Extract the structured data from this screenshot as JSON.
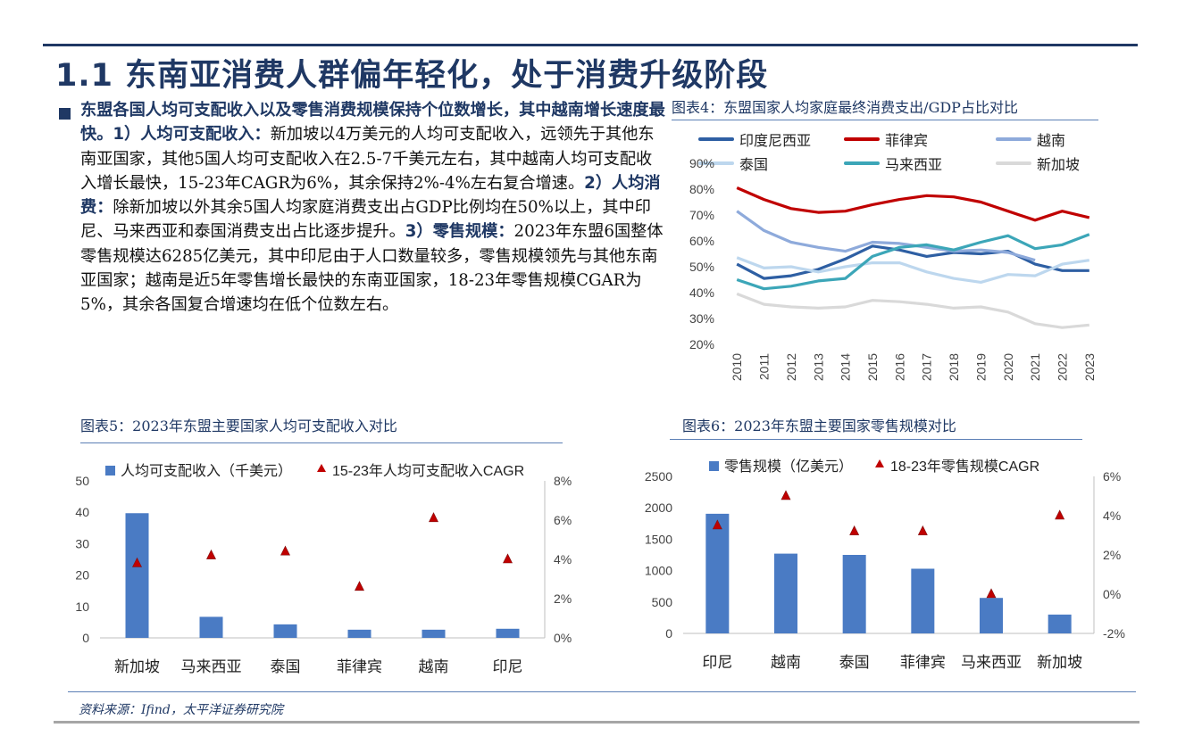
{
  "page": {
    "title": "1.1 东南亚消费人群偏年轻化，处于消费升级阶段",
    "source": "资料来源：Ifind，太平洋证券研究院"
  },
  "body": {
    "p1_bold": "东盟各国人均可支配收入以及零售消费规模保持个位数增长，其中越南增长速度最快。1）人均可支配收入：",
    "p1_text": "新加坡以4万美元的人均可支配收入，远领先于其他东南亚国家，其他5国人均可支配收入在2.5-7千美元左右，其中越南人均可支配收入增长最快，15-23年CAGR为6%，其余保持2%-4%左右复合增速。",
    "p2_bold": "2）人均消费：",
    "p2_text": "除新加坡以外其余5国人均家庭消费支出占GDP比例均在50%以上，其中印尼、马来西亚和泰国消费支出占比逐步提升。",
    "p3_bold": "3）零售规模：",
    "p3_text": "2023年东盟6国整体零售规模达6285亿美元，其中印尼由于人口数量较多，零售规模领先与其他东南亚国家；越南是近5年零售增长最快的东南亚国家，18-23年零售规模CGAR为5%，其余各国复合增速均在低个位数左右。"
  },
  "captions": {
    "fig4": "图表4：东盟国家人均家庭最终消费支出/GDP占比对比",
    "fig5": "图表5：2023年东盟主要国家人均可支配收入对比",
    "fig6": "图表6：2023年东盟主要国家零售规模对比"
  },
  "chart_data": [
    {
      "id": "fig4",
      "type": "line",
      "x": [
        "2010",
        "2011",
        "2012",
        "2013",
        "2014",
        "2015",
        "2016",
        "2017",
        "2018",
        "2019",
        "2020",
        "2021",
        "2022",
        "2023"
      ],
      "ylim": [
        0.2,
        0.9
      ],
      "yticks": [
        "20%",
        "30%",
        "40%",
        "50%",
        "60%",
        "70%",
        "80%",
        "90%"
      ],
      "series": [
        {
          "name": "印度尼西亚",
          "color": "#2e5fa3",
          "values": [
            0.51,
            0.455,
            0.465,
            0.49,
            0.53,
            0.58,
            0.565,
            0.54,
            0.555,
            0.55,
            0.56,
            0.51,
            0.485,
            0.485
          ]
        },
        {
          "name": "菲律宾",
          "color": "#c00000",
          "values": [
            0.805,
            0.76,
            0.725,
            0.71,
            0.715,
            0.74,
            0.76,
            0.775,
            0.77,
            0.75,
            0.715,
            0.68,
            0.715,
            0.69
          ]
        },
        {
          "name": "越南",
          "color": "#8eaadb",
          "values": [
            0.715,
            0.64,
            0.595,
            0.575,
            0.56,
            0.595,
            0.59,
            0.575,
            0.56,
            0.565,
            0.555,
            0.525,
            null,
            null
          ]
        },
        {
          "name": "泰国",
          "color": "#bdd7ee",
          "values": [
            0.535,
            0.495,
            0.5,
            0.48,
            0.5,
            0.515,
            0.515,
            0.48,
            0.455,
            0.44,
            0.47,
            0.465,
            0.51,
            0.525
          ]
        },
        {
          "name": "马来西亚",
          "color": "#3ca6b8",
          "values": [
            0.45,
            0.415,
            0.425,
            0.445,
            0.455,
            0.54,
            0.575,
            0.585,
            0.565,
            0.595,
            0.62,
            0.57,
            0.585,
            0.625
          ]
        },
        {
          "name": "新加坡",
          "color": "#d9d9d9",
          "values": [
            0.395,
            0.355,
            0.345,
            0.34,
            0.345,
            0.37,
            0.365,
            0.355,
            0.34,
            0.345,
            0.325,
            0.28,
            0.265,
            0.275
          ]
        }
      ]
    },
    {
      "id": "fig5",
      "type": "bar",
      "categories": [
        "新加坡",
        "马来西亚",
        "泰国",
        "菲律宾",
        "越南",
        "印尼"
      ],
      "series": [
        {
          "name": "人均可支配收入（千美元）",
          "color": "#4a7bc4",
          "values": [
            39.7,
            6.7,
            4.3,
            2.6,
            2.6,
            2.9
          ],
          "axis": "left"
        },
        {
          "name": "15-23年人均可支配收入CAGR",
          "color": "#c00000",
          "values": [
            0.038,
            0.042,
            0.044,
            0.026,
            0.061,
            0.04
          ],
          "axis": "right"
        }
      ],
      "ylim_left": [
        0,
        50
      ],
      "yticks_left": [
        "0",
        "10",
        "20",
        "30",
        "40",
        "50"
      ],
      "ylim_right": [
        0,
        0.08
      ],
      "yticks_right": [
        "0%",
        "2%",
        "4%",
        "6%",
        "8%"
      ]
    },
    {
      "id": "fig6",
      "type": "bar",
      "categories": [
        "印尼",
        "越南",
        "泰国",
        "菲律宾",
        "马来西亚",
        "新加坡"
      ],
      "series": [
        {
          "name": "零售规模（亿美元）",
          "color": "#4a7bc4",
          "values": [
            1905,
            1270,
            1250,
            1030,
            565,
            300
          ],
          "axis": "left"
        },
        {
          "name": "18-23年零售规模CAGR",
          "color": "#c00000",
          "values": [
            0.035,
            0.05,
            0.032,
            0.032,
            0.0,
            0.04
          ],
          "axis": "right"
        }
      ],
      "ylim_left": [
        0,
        2500
      ],
      "yticks_left": [
        "0",
        "500",
        "1000",
        "1500",
        "2000",
        "2500"
      ],
      "ylim_right": [
        -0.02,
        0.06
      ],
      "yticks_right": [
        "-2%",
        "0%",
        "2%",
        "4%",
        "6%"
      ]
    }
  ]
}
